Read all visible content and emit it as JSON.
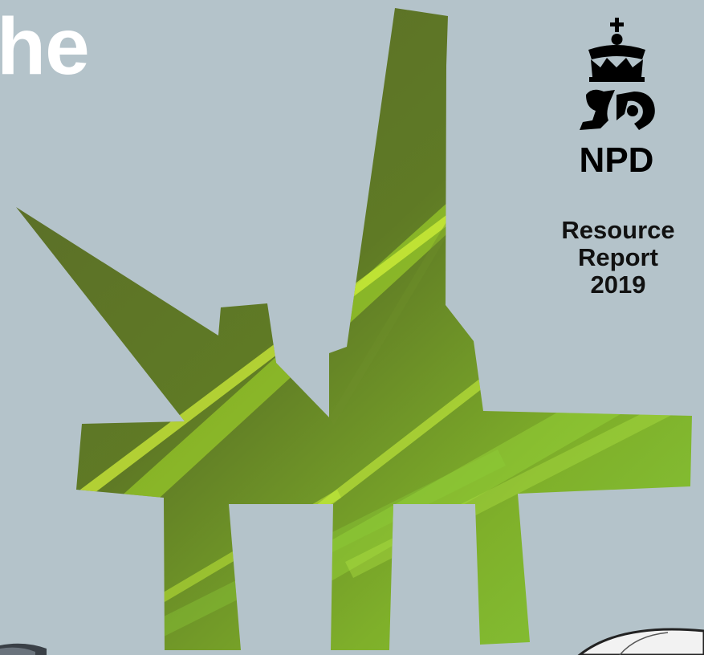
{
  "headline": {
    "text": "he"
  },
  "logo": {
    "agency": "NPD",
    "icon": "crown-and-lion-icon"
  },
  "report": {
    "line1": "Resource",
    "line2": "Report",
    "line3": "2019"
  },
  "colors": {
    "background": "#b4c3ca",
    "platform_dark": "#5b6a2a",
    "platform_light": "#8ccc2a",
    "text": "#000000",
    "headline": "#ffffff"
  }
}
